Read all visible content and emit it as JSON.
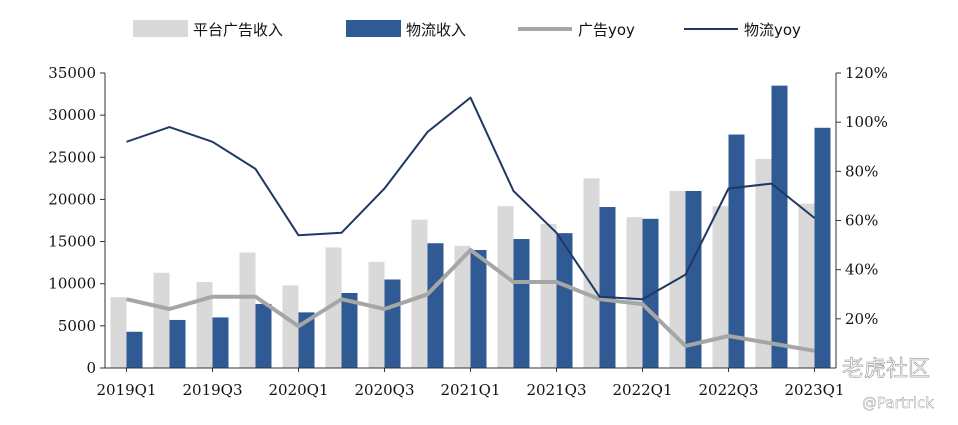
{
  "chart_data": {
    "type": "bar",
    "categories": [
      "2019Q1",
      "2019Q2",
      "2019Q3",
      "2019Q4",
      "2020Q1",
      "2020Q2",
      "2020Q3",
      "2020Q4",
      "2021Q1",
      "2021Q2",
      "2021Q3",
      "2021Q4",
      "2022Q1",
      "2022Q2",
      "2022Q3",
      "2022Q4",
      "2023Q1"
    ],
    "x_tick_labels": [
      "2019Q1",
      "2019Q3",
      "2020Q1",
      "2020Q3",
      "2021Q1",
      "2021Q3",
      "2022Q1",
      "2022Q3",
      "2023Q1"
    ],
    "series": [
      {
        "name": "平台广告收入",
        "kind": "bar",
        "axis": "left",
        "color": "#d9d9d9",
        "values": [
          8400,
          11300,
          10200,
          13700,
          9800,
          14300,
          12600,
          17600,
          14500,
          19200,
          17100,
          22500,
          17900,
          21000,
          19200,
          24800,
          19500
        ]
      },
      {
        "name": "物流收入",
        "kind": "bar",
        "axis": "left",
        "color": "#2f5a93",
        "values": [
          4300,
          5700,
          6000,
          7600,
          6600,
          8900,
          10500,
          14800,
          14000,
          15300,
          16000,
          19100,
          17700,
          21000,
          27700,
          33500,
          28500
        ]
      },
      {
        "name": "广告yoy",
        "kind": "line",
        "axis": "right",
        "color": "#a6a6a6",
        "values": [
          28,
          24,
          29,
          29,
          17,
          28,
          24,
          30,
          48,
          35,
          35,
          28,
          26,
          9,
          13,
          10,
          7
        ]
      },
      {
        "name": "物流yoy",
        "kind": "line",
        "axis": "right",
        "color": "#1f3864",
        "values": [
          92,
          98,
          92,
          81,
          54,
          55,
          73,
          96,
          110,
          72,
          55,
          29,
          28,
          38,
          73,
          75,
          61
        ]
      }
    ],
    "y_left": {
      "min": 0,
      "max": 35000,
      "ticks": [
        0,
        5000,
        10000,
        15000,
        20000,
        25000,
        30000,
        35000
      ]
    },
    "y_right": {
      "min": 0,
      "max": 120,
      "ticks": [
        20,
        40,
        60,
        80,
        100,
        120
      ],
      "tick_suffix": "%"
    },
    "legend": "top",
    "grid": false
  },
  "watermark": {
    "name": "老虎社区",
    "handle": "@Partrick"
  }
}
